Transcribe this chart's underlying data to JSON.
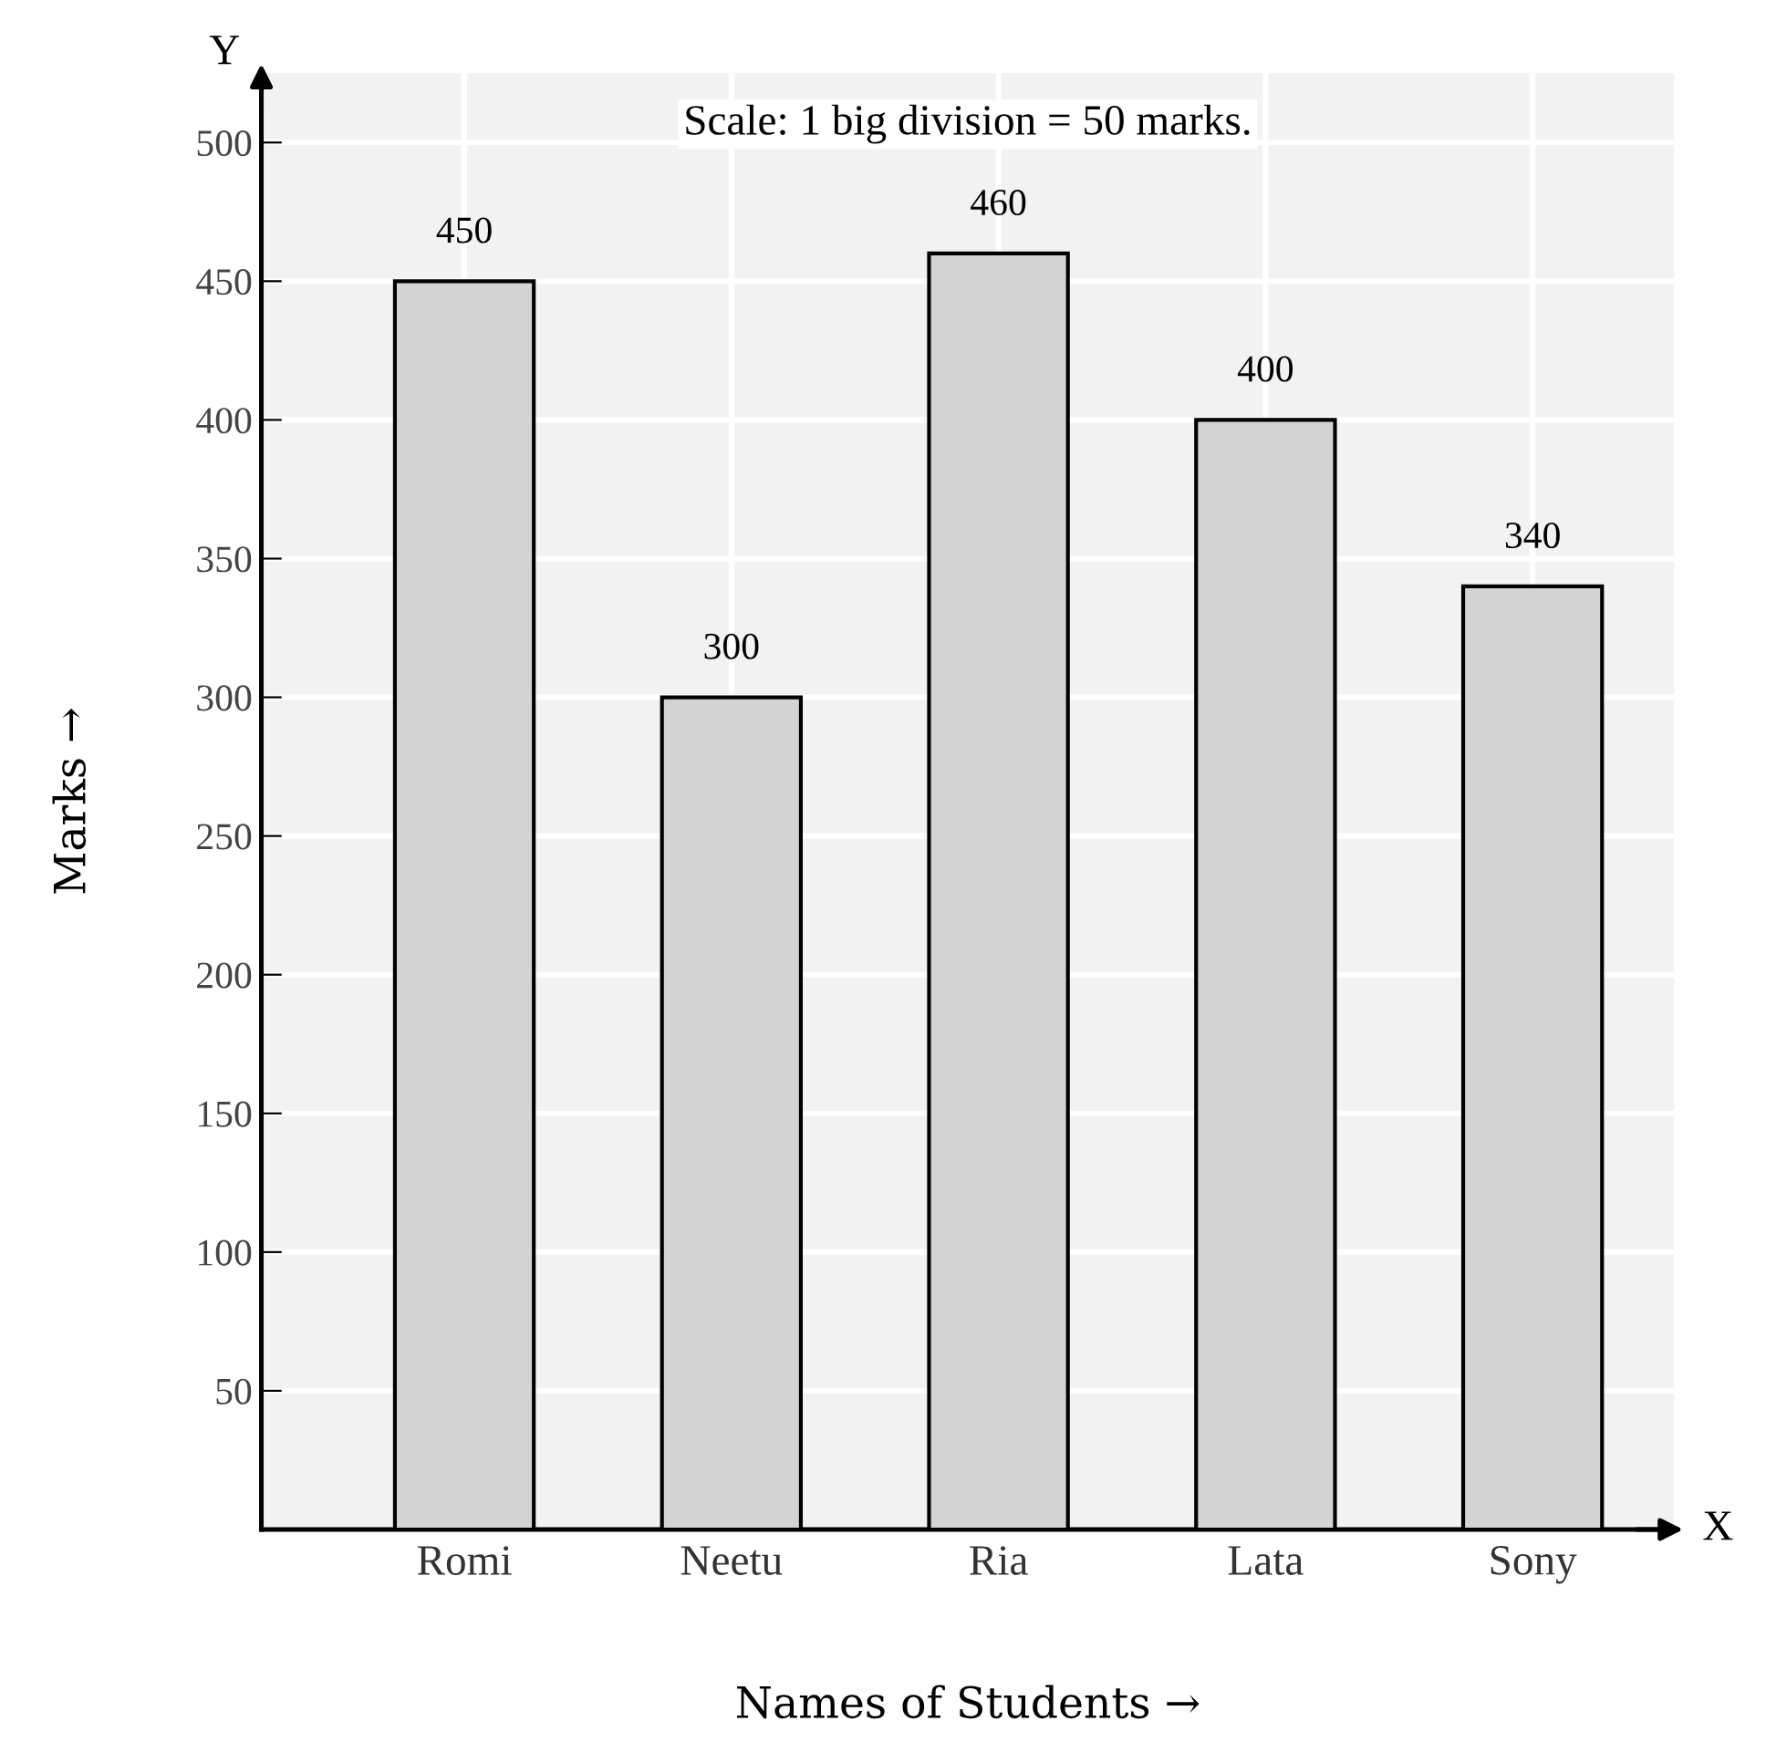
{
  "chart_data": {
    "type": "bar",
    "categories": [
      "Romi",
      "Neetu",
      "Ria",
      "Lata",
      "Sony"
    ],
    "values": [
      450,
      300,
      460,
      400,
      340
    ],
    "color": "#d3d3d3",
    "data_labels": true,
    "xlabel": "Names of Students →",
    "ylabel": "Marks →",
    "annotations": [
      "Scale: 1 big division = 50 marks.",
      "Y",
      "X"
    ],
    "ylim": [
      0,
      525
    ],
    "yticks": [
      50,
      100,
      150,
      200,
      250,
      300,
      350,
      400,
      450,
      500
    ],
    "grid": true,
    "legend": false
  }
}
